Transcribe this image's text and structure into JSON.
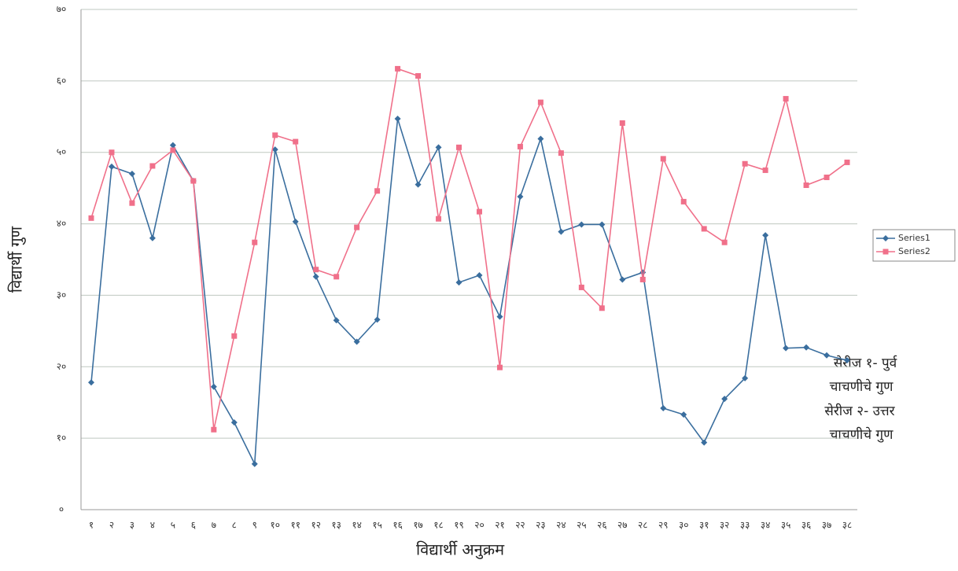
{
  "chart_data": {
    "type": "line",
    "y_label": "विद्यार्थी गुण",
    "x_label": "विद्यार्थी अनुक्रम",
    "annotations": [
      "सेरीज १- पुर्व",
      "चाचणीचे गुण",
      "सेरीज २- उत्तर",
      "चाचणीचे गुण"
    ],
    "categories": [
      "१",
      "२",
      "३",
      "४",
      "५",
      "६",
      "७",
      "८",
      "९",
      "१०",
      "११",
      "१२",
      "१३",
      "१४",
      "१५",
      "१६",
      "१७",
      "१८",
      "१९",
      "२०",
      "२१",
      "२२",
      "२३",
      "२४",
      "२५",
      "२६",
      "२७",
      "२८",
      "२९",
      "३०",
      "३१",
      "३२",
      "३३",
      "३४",
      "३५",
      "३६",
      "३७",
      "३८"
    ],
    "series": [
      {
        "name": "Series1",
        "color": "#3a6e9e",
        "marker": "diamond",
        "values": [
          17.8,
          48,
          47,
          38,
          51,
          46,
          17.2,
          12.2,
          6.4,
          50.4,
          40.3,
          32.6,
          26.5,
          23.5,
          26.6,
          54.7,
          45.5,
          50.7,
          31.8,
          32.8,
          27,
          43.8,
          51.9,
          38.9,
          39.9,
          39.9,
          32.2,
          33.2,
          14.2,
          13.3,
          9.4,
          15.5,
          18.4,
          38.4,
          22.6,
          22.7,
          21.6,
          20.9
        ]
      },
      {
        "name": "Series2",
        "color": "#f0708a",
        "marker": "square",
        "values": [
          40.8,
          50,
          42.9,
          48.1,
          50.3,
          46,
          11.2,
          24.3,
          37.4,
          52.4,
          51.5,
          33.6,
          32.6,
          39.5,
          44.6,
          61.7,
          60.7,
          40.7,
          50.7,
          41.7,
          19.9,
          50.8,
          57,
          49.9,
          31.1,
          28.2,
          54.1,
          32.2,
          49.1,
          43.1,
          39.3,
          37.4,
          48.4,
          47.5,
          57.5,
          45.4,
          46.5,
          48.6
        ]
      }
    ],
    "ylim": [
      0,
      70
    ],
    "yticks": [
      {
        "value": 0,
        "label": "०"
      },
      {
        "value": 10,
        "label": "१०"
      },
      {
        "value": 20,
        "label": "२०"
      },
      {
        "value": 30,
        "label": "३०"
      },
      {
        "value": 40,
        "label": "४०"
      },
      {
        "value": 50,
        "label": "५०"
      },
      {
        "value": 60,
        "label": "६०"
      },
      {
        "value": 70,
        "label": "७०"
      }
    ],
    "grid": true,
    "legend": "right"
  }
}
